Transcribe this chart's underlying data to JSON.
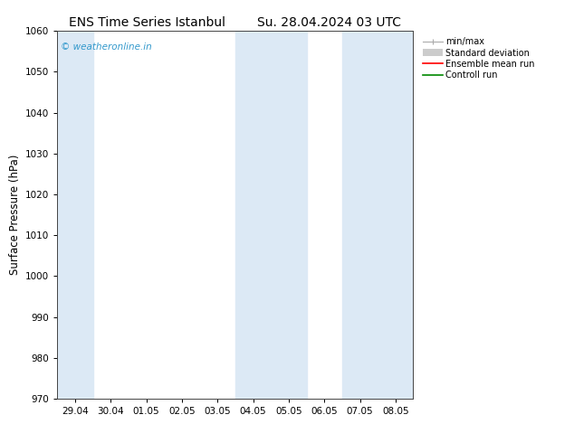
{
  "title_left": "ENS Time Series Istanbul",
  "title_right": "Su. 28.04.2024 03 UTC",
  "ylabel": "Surface Pressure (hPa)",
  "ylim": [
    970,
    1060
  ],
  "yticks": [
    970,
    980,
    990,
    1000,
    1010,
    1020,
    1030,
    1040,
    1050,
    1060
  ],
  "x_tick_labels": [
    "29.04",
    "30.04",
    "01.05",
    "02.05",
    "03.05",
    "04.05",
    "05.05",
    "06.05",
    "07.05",
    "08.05"
  ],
  "x_tick_positions": [
    0,
    1,
    2,
    3,
    4,
    5,
    6,
    7,
    8,
    9
  ],
  "xlim": [
    -0.5,
    9.5
  ],
  "bg_color": "#ffffff",
  "plot_bg_color": "#ffffff",
  "shaded_color": "#dce9f5",
  "shaded_bands": [
    {
      "x_start": -0.5,
      "x_end": 0.5
    },
    {
      "x_start": 4.5,
      "x_end": 6.5
    },
    {
      "x_start": 7.5,
      "x_end": 9.5
    }
  ],
  "watermark_text": "© weatheronline.in",
  "watermark_color": "#3399cc",
  "legend_items": [
    {
      "label": "min/max",
      "color": "#aaaaaa"
    },
    {
      "label": "Standard deviation",
      "color": "#cccccc"
    },
    {
      "label": "Ensemble mean run",
      "color": "#ff0000"
    },
    {
      "label": "Controll run",
      "color": "#008800"
    }
  ],
  "title_fontsize": 10,
  "tick_fontsize": 7.5,
  "ylabel_fontsize": 8.5,
  "legend_fontsize": 7
}
